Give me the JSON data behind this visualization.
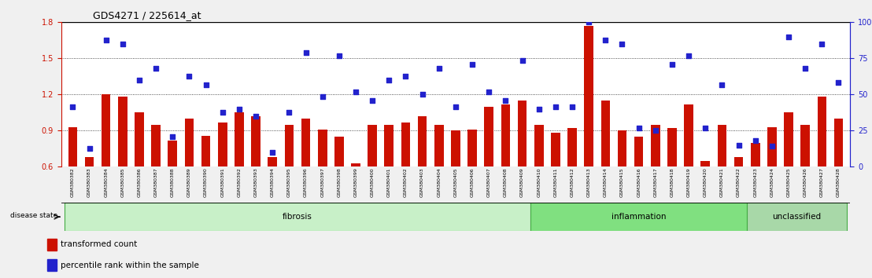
{
  "title": "GDS4271 / 225614_at",
  "samples": [
    "GSM380382",
    "GSM380383",
    "GSM380384",
    "GSM380385",
    "GSM380386",
    "GSM380387",
    "GSM380388",
    "GSM380389",
    "GSM380390",
    "GSM380391",
    "GSM380392",
    "GSM380393",
    "GSM380394",
    "GSM380395",
    "GSM380396",
    "GSM380397",
    "GSM380398",
    "GSM380399",
    "GSM380400",
    "GSM380401",
    "GSM380402",
    "GSM380403",
    "GSM380404",
    "GSM380405",
    "GSM380406",
    "GSM380407",
    "GSM380408",
    "GSM380409",
    "GSM380410",
    "GSM380411",
    "GSM380412",
    "GSM380413",
    "GSM380414",
    "GSM380415",
    "GSM380416",
    "GSM380417",
    "GSM380418",
    "GSM380419",
    "GSM380420",
    "GSM380421",
    "GSM380422",
    "GSM380423",
    "GSM380424",
    "GSM380425",
    "GSM380426",
    "GSM380427",
    "GSM380428"
  ],
  "bar_values": [
    0.93,
    0.68,
    1.2,
    1.18,
    1.05,
    0.95,
    0.82,
    1.0,
    0.86,
    0.97,
    1.05,
    1.02,
    0.68,
    0.95,
    1.0,
    0.91,
    0.85,
    0.63,
    0.95,
    0.95,
    0.97,
    1.02,
    0.95,
    0.9,
    0.91,
    1.1,
    1.12,
    1.15,
    0.95,
    0.88,
    0.92,
    1.77,
    1.15,
    0.9,
    0.85,
    0.95,
    0.92,
    1.12,
    0.65,
    0.95,
    0.68,
    0.8,
    0.93,
    1.05,
    0.95,
    1.18,
    1.0
  ],
  "percentile_values": [
    1.1,
    0.75,
    1.65,
    1.62,
    1.32,
    1.42,
    0.85,
    1.35,
    1.28,
    1.05,
    1.08,
    1.02,
    0.72,
    1.05,
    1.55,
    1.18,
    1.52,
    1.22,
    1.15,
    1.32,
    1.35,
    1.2,
    1.42,
    1.1,
    1.45,
    1.22,
    1.15,
    1.48,
    1.08,
    1.1,
    1.1,
    1.8,
    1.65,
    1.62,
    0.92,
    0.9,
    1.45,
    1.52,
    0.92,
    1.28,
    0.78,
    0.82,
    0.77,
    1.68,
    1.42,
    1.62,
    1.3
  ],
  "groups": [
    {
      "label": "fibrosis",
      "start": 0,
      "end": 28,
      "color": "#c8f0c8",
      "edge": "#44aa44"
    },
    {
      "label": "inflammation",
      "start": 28,
      "end": 41,
      "color": "#80e080",
      "edge": "#44aa44"
    },
    {
      "label": "unclassified",
      "start": 41,
      "end": 47,
      "color": "#a8d8a8",
      "edge": "#44aa44"
    }
  ],
  "ylim_left": [
    0.6,
    1.8
  ],
  "yticks_left": [
    0.6,
    0.9,
    1.2,
    1.5,
    1.8
  ],
  "yticks_right": [
    0,
    25,
    50,
    75,
    100
  ],
  "ytick_right_labels": [
    "0",
    "25",
    "50",
    "75",
    "100%"
  ],
  "bar_color": "#cc1100",
  "dot_color": "#2222cc",
  "bg_color": "#f0f0f0",
  "plot_bg": "#ffffff",
  "grid_color": "#222222",
  "hline_dotted": [
    0.9,
    1.2,
    1.5
  ],
  "legend_items": [
    "transformed count",
    "percentile rank within the sample"
  ],
  "title_fontsize": 9,
  "tick_fontsize": 7,
  "label_fontsize": 7.5
}
